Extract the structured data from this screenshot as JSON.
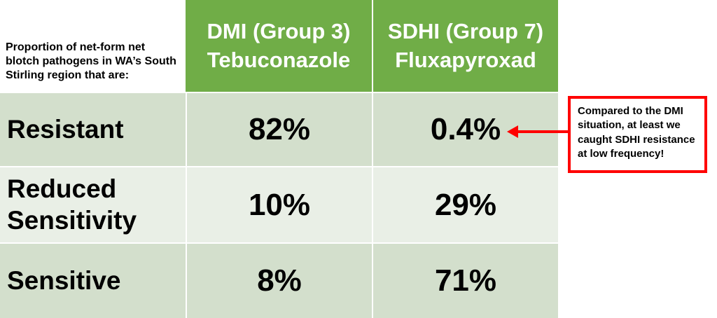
{
  "table": {
    "corner": "Proportion of net-form net blotch pathogens in WA’s South Stirling region that are:",
    "headers": [
      "DMI (Group 3) Tebuconazole",
      "SDHI (Group 7) Fluxapyroxad"
    ],
    "rows": [
      [
        "Resistant",
        "82%",
        "0.4%"
      ],
      [
        "Reduced Sensitivity",
        "10%",
        "29%"
      ],
      [
        "Sensitive",
        "8%",
        "71%"
      ]
    ]
  },
  "callout": "Compared to the DMI situation, at least we caught SDHI resistance at low frequency!"
}
